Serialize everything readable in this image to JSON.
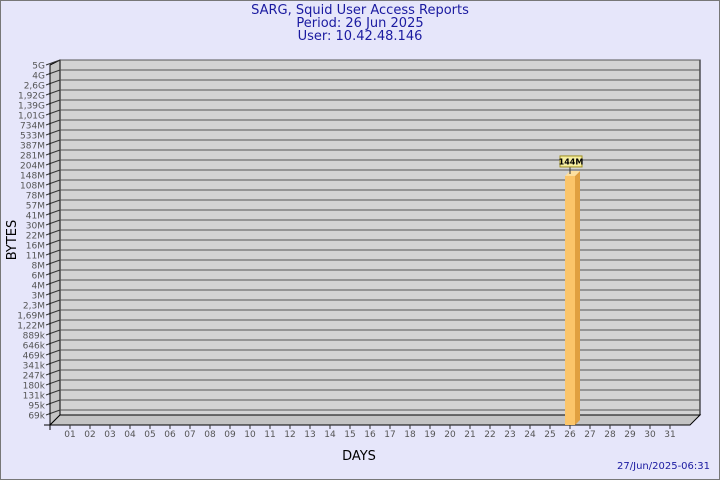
{
  "header": {
    "title": "SARG, Squid User Access Reports",
    "period": "Period: 26 Jun 2025",
    "user": "User: 10.42.48.146"
  },
  "footer": {
    "timestamp": "27/Jun/2025-06:31"
  },
  "colors": {
    "background": "#e6e6fa",
    "plot": "#d3d3d3",
    "bar": "#fbc56a",
    "bar_side": "#e0a040",
    "title": "#1a1aa0",
    "label_box": "#f5eea0"
  },
  "chart_data": {
    "type": "bar",
    "xlabel": "DAYS",
    "ylabel": "BYTES",
    "y_scale": "log",
    "grid": true,
    "y_tick_labels": [
      "5G",
      "4G",
      "2,6G",
      "1,92G",
      "1,39G",
      "1,01G",
      "734M",
      "533M",
      "387M",
      "281M",
      "204M",
      "148M",
      "108M",
      "78M",
      "57M",
      "41M",
      "30M",
      "22M",
      "16M",
      "11M",
      "8M",
      "6M",
      "4M",
      "3M",
      "2,3M",
      "1,69M",
      "1,22M",
      "889k",
      "646k",
      "469k",
      "341k",
      "247k",
      "180k",
      "131k",
      "95k",
      "69k"
    ],
    "categories": [
      "01",
      "02",
      "03",
      "04",
      "05",
      "06",
      "07",
      "08",
      "09",
      "10",
      "11",
      "12",
      "13",
      "14",
      "15",
      "16",
      "17",
      "18",
      "19",
      "20",
      "21",
      "22",
      "23",
      "24",
      "25",
      "26",
      "27",
      "28",
      "29",
      "30",
      "31"
    ],
    "values": [
      null,
      null,
      null,
      null,
      null,
      null,
      null,
      null,
      null,
      null,
      null,
      null,
      null,
      null,
      null,
      null,
      null,
      null,
      null,
      null,
      null,
      null,
      null,
      null,
      null,
      "144M",
      null,
      null,
      null,
      null,
      null
    ],
    "data_labels": {
      "26": "144M"
    }
  }
}
